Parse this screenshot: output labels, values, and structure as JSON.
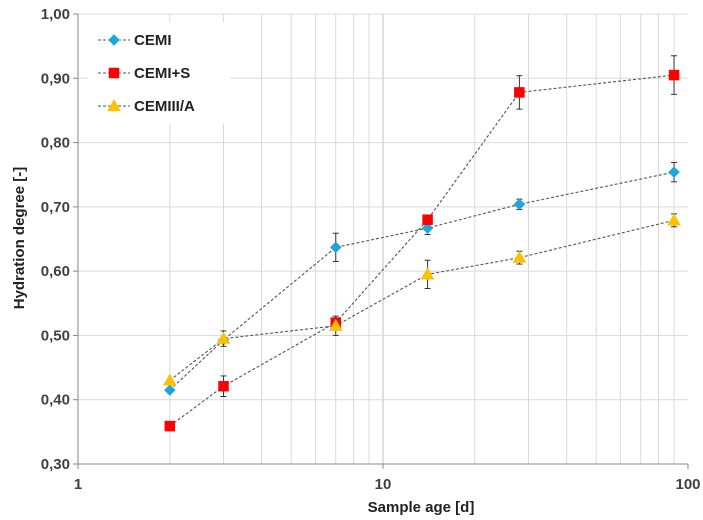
{
  "chart_data": {
    "type": "scatter",
    "title": "",
    "xlabel": "Sample age [d]",
    "ylabel": "Hydration degree [-]",
    "x_scale": "log",
    "xlim": [
      1,
      100
    ],
    "ylim": [
      0.3,
      1.0
    ],
    "grid": true,
    "legend_position": "top-left",
    "x_ticks": [
      {
        "value": 1,
        "label": "1"
      },
      {
        "value": 10,
        "label": "10"
      },
      {
        "value": 100,
        "label": "100"
      }
    ],
    "y_ticks": [
      {
        "value": 0.3,
        "label": "0,30"
      },
      {
        "value": 0.4,
        "label": "0,40"
      },
      {
        "value": 0.5,
        "label": "0,50"
      },
      {
        "value": 0.6,
        "label": "0,60"
      },
      {
        "value": 0.7,
        "label": "0,70"
      },
      {
        "value": 0.8,
        "label": "0,80"
      },
      {
        "value": 0.9,
        "label": "0,90"
      },
      {
        "value": 1.0,
        "label": "1,00"
      }
    ],
    "series": [
      {
        "name": "CEMI",
        "color": "#1ea5e0",
        "marker": "diamond",
        "x": [
          2,
          3,
          7,
          14,
          28,
          90
        ],
        "y": [
          0.415,
          0.493,
          0.637,
          0.667,
          0.704,
          0.754
        ],
        "error": [
          0.0,
          0.0,
          0.022,
          0.01,
          0.008,
          0.015
        ]
      },
      {
        "name": "CEMI+S",
        "color": "#ff0000",
        "marker": "square",
        "x": [
          2,
          3,
          7,
          14,
          28,
          90
        ],
        "y": [
          0.359,
          0.421,
          0.52,
          0.68,
          0.878,
          0.905
        ],
        "error": [
          0.0,
          0.016,
          0.0,
          0.0,
          0.026,
          0.03
        ]
      },
      {
        "name": "CEMIII/A",
        "color": "#ffc000",
        "marker": "triangle",
        "x": [
          2,
          3,
          7,
          14,
          28,
          90
        ],
        "y": [
          0.43,
          0.495,
          0.515,
          0.595,
          0.621,
          0.679
        ],
        "error": [
          0.0,
          0.012,
          0.015,
          0.022,
          0.01,
          0.01
        ]
      }
    ],
    "line_style": "dashed",
    "line_color": "#555555"
  }
}
